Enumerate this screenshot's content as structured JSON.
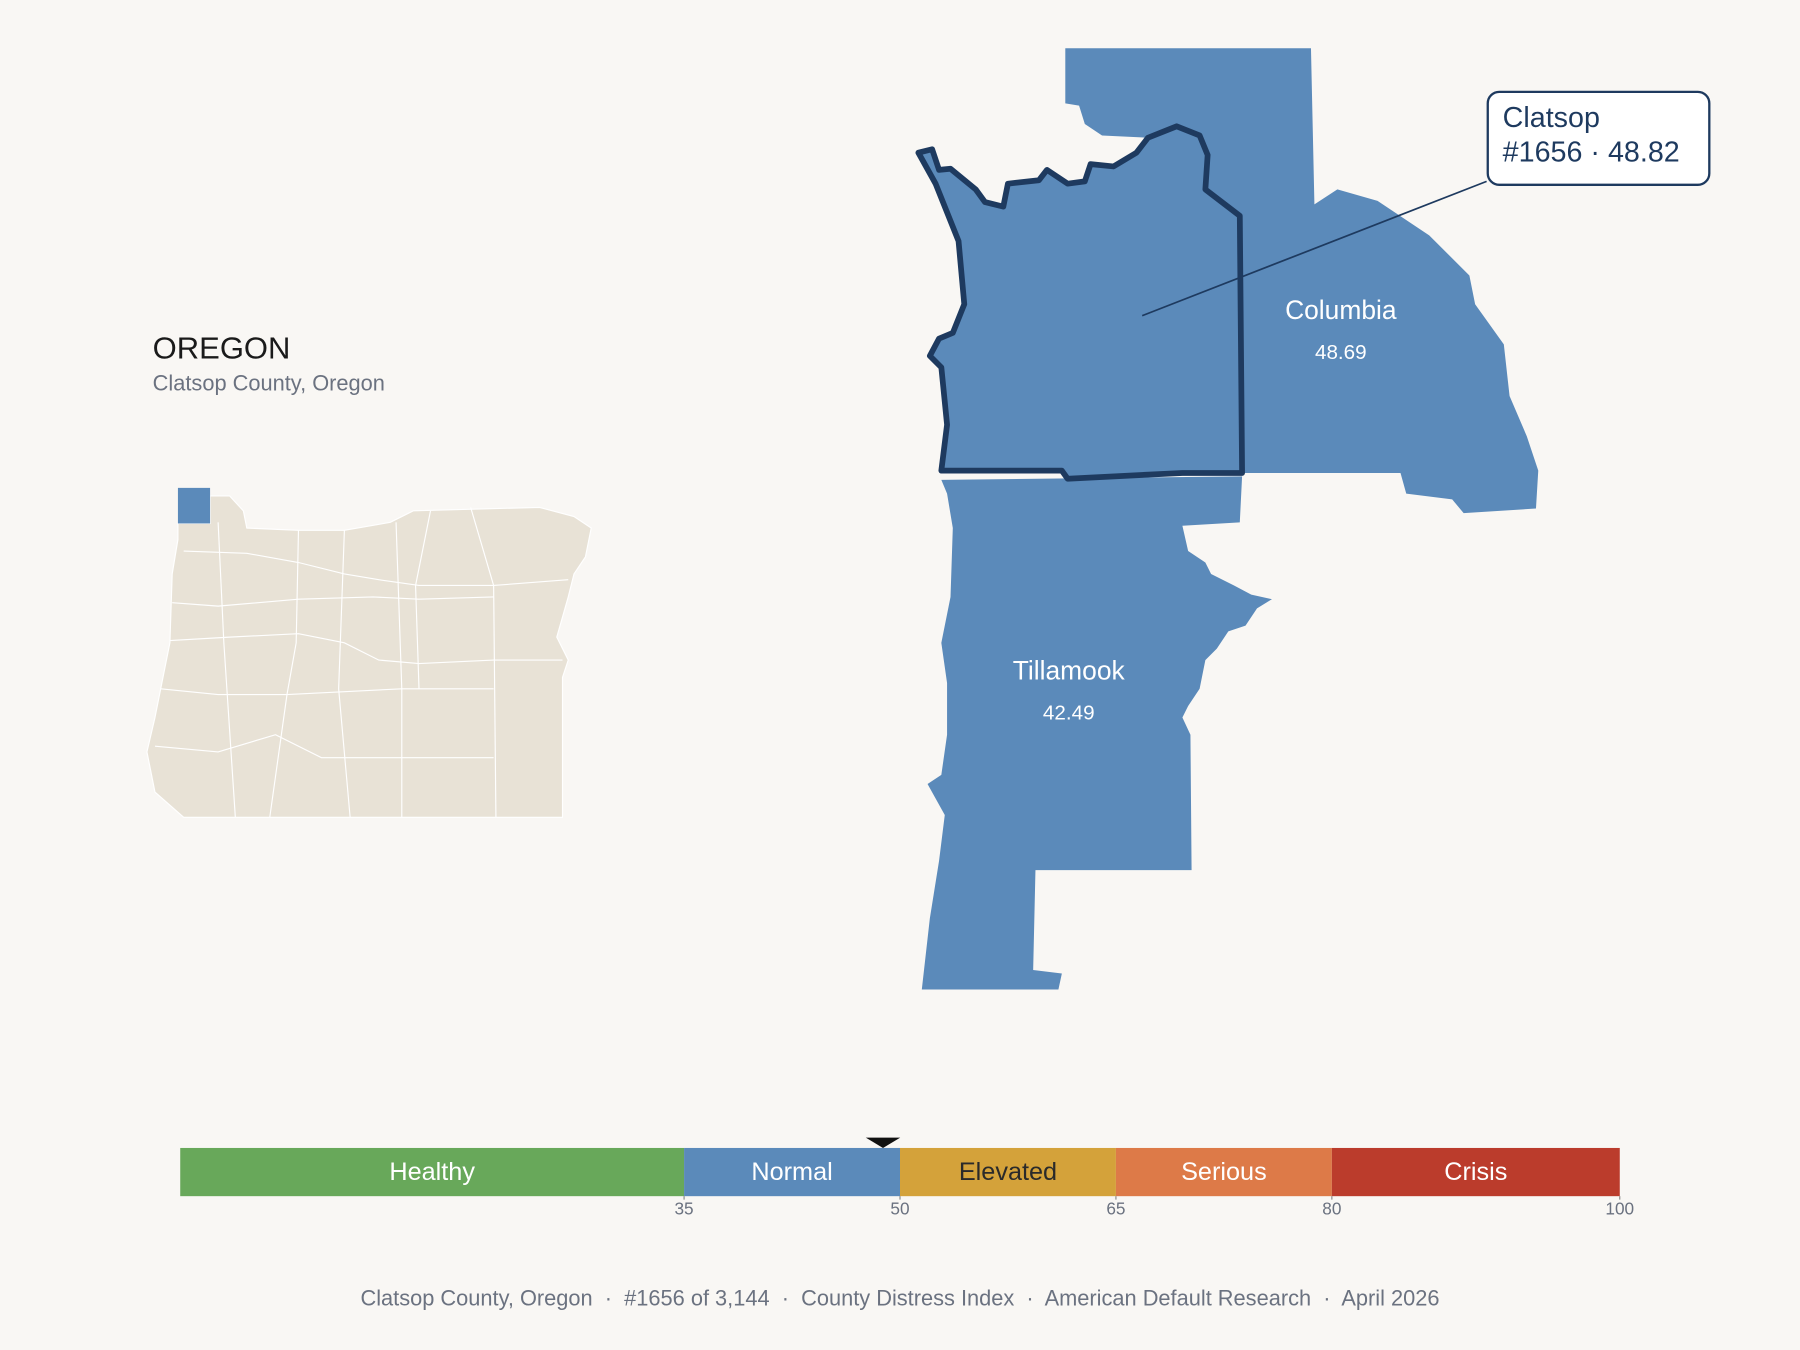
{
  "state": {
    "title": "OREGON",
    "subtitle": "Clatsop County, Oregon"
  },
  "callout": {
    "lines": [
      "Clatsop",
      "#1656 · 48.82"
    ]
  },
  "counties": [
    {
      "name": "Columbia",
      "score": 48.69
    },
    {
      "name": "Tillamook",
      "score": 42.49
    }
  ],
  "scale": {
    "lim": [
      0,
      100
    ],
    "ticks": [
      35,
      50,
      65,
      80,
      100
    ],
    "bands": [
      {
        "label": "Healthy",
        "color": "#68a85a"
      },
      {
        "label": "Normal",
        "color": "#5b8aba"
      },
      {
        "label": "Elevated",
        "color": "#d4a23a"
      },
      {
        "label": "Serious",
        "color": "#dd7a48"
      },
      {
        "label": "Crisis",
        "color": "#bb3c2c"
      }
    ],
    "marker": 48.82
  },
  "footer": "Clatsop County, Oregon  ·  #1656 of 3,144  ·  County Distress Index  ·  American Default Research  ·  April 2026"
}
